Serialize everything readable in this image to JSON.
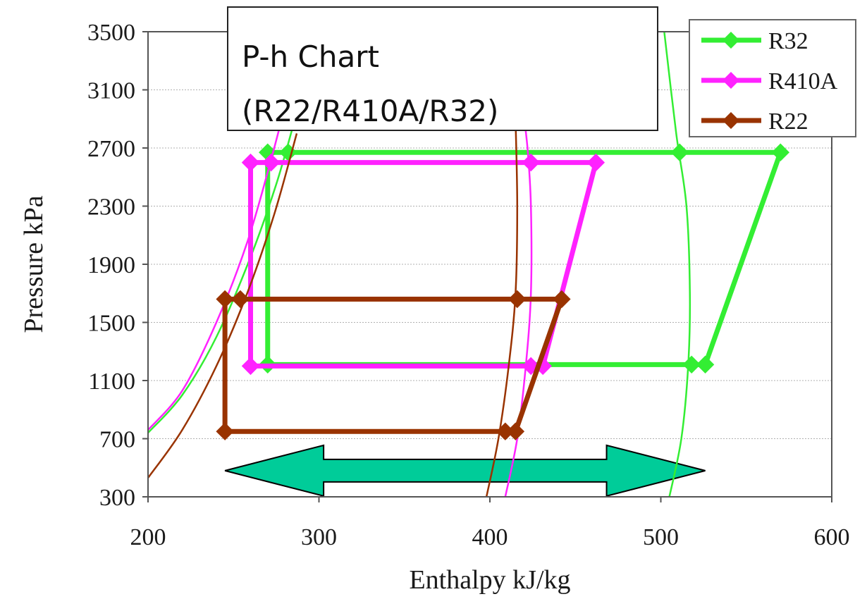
{
  "chart_data": {
    "type": "line",
    "title_lines": [
      "P-h Chart",
      "(R22/R410A/R32)"
    ],
    "xlabel": "Enthalpy  kJ/kg",
    "ylabel": "Pressure  kPa",
    "xlim": [
      200,
      600
    ],
    "ylim": [
      300,
      3500
    ],
    "xticks": [
      200,
      300,
      400,
      500,
      600
    ],
    "yticks": [
      300,
      700,
      1100,
      1500,
      1900,
      2300,
      2700,
      3100,
      3500
    ],
    "grid": "horizontal",
    "legend_position": "top-right",
    "series": [
      {
        "name": "R32",
        "color": "#33ee33",
        "cycle": [
          {
            "x": 270,
            "y": 1210
          },
          {
            "x": 270,
            "y": 2670
          },
          {
            "x": 282,
            "y": 2670
          },
          {
            "x": 511,
            "y": 2670
          },
          {
            "x": 570,
            "y": 2670
          },
          {
            "x": 526,
            "y": 1210
          },
          {
            "x": 518,
            "y": 1210
          },
          {
            "x": 270,
            "y": 1210
          }
        ],
        "saturation_liquid": [
          {
            "x": 200,
            "y": 740
          },
          {
            "x": 220,
            "y": 1000
          },
          {
            "x": 240,
            "y": 1400
          },
          {
            "x": 260,
            "y": 1950
          },
          {
            "x": 275,
            "y": 2450
          },
          {
            "x": 286,
            "y": 2900
          }
        ],
        "saturation_vapor": [
          {
            "x": 505,
            "y": 300
          },
          {
            "x": 512,
            "y": 700
          },
          {
            "x": 516,
            "y": 1200
          },
          {
            "x": 517,
            "y": 1700
          },
          {
            "x": 515,
            "y": 2300
          },
          {
            "x": 509,
            "y": 2800
          },
          {
            "x": 502,
            "y": 3500
          }
        ]
      },
      {
        "name": "R410A",
        "color": "#ff22ff",
        "cycle": [
          {
            "x": 260,
            "y": 1200
          },
          {
            "x": 260,
            "y": 2600
          },
          {
            "x": 272,
            "y": 2600
          },
          {
            "x": 424,
            "y": 2600
          },
          {
            "x": 462,
            "y": 2600
          },
          {
            "x": 431,
            "y": 1200
          },
          {
            "x": 424,
            "y": 1200
          },
          {
            "x": 260,
            "y": 1200
          }
        ],
        "saturation_liquid": [
          {
            "x": 200,
            "y": 760
          },
          {
            "x": 220,
            "y": 1030
          },
          {
            "x": 240,
            "y": 1500
          },
          {
            "x": 258,
            "y": 2050
          },
          {
            "x": 272,
            "y": 2620
          },
          {
            "x": 283,
            "y": 3120
          }
        ],
        "saturation_vapor": [
          {
            "x": 409,
            "y": 300
          },
          {
            "x": 416,
            "y": 700
          },
          {
            "x": 421,
            "y": 1200
          },
          {
            "x": 424,
            "y": 1700
          },
          {
            "x": 424,
            "y": 2300
          },
          {
            "x": 422,
            "y": 2700
          },
          {
            "x": 419,
            "y": 3000
          }
        ]
      },
      {
        "name": "R22",
        "color": "#993300",
        "cycle": [
          {
            "x": 245,
            "y": 750
          },
          {
            "x": 245,
            "y": 1660
          },
          {
            "x": 254,
            "y": 1660
          },
          {
            "x": 416,
            "y": 1660
          },
          {
            "x": 442,
            "y": 1660
          },
          {
            "x": 415,
            "y": 750
          },
          {
            "x": 409,
            "y": 750
          },
          {
            "x": 245,
            "y": 750
          }
        ],
        "saturation_liquid": [
          {
            "x": 200,
            "y": 430
          },
          {
            "x": 220,
            "y": 760
          },
          {
            "x": 240,
            "y": 1200
          },
          {
            "x": 258,
            "y": 1700
          },
          {
            "x": 274,
            "y": 2250
          },
          {
            "x": 287,
            "y": 2800
          }
        ],
        "saturation_vapor": [
          {
            "x": 398,
            "y": 300
          },
          {
            "x": 405,
            "y": 700
          },
          {
            "x": 411,
            "y": 1200
          },
          {
            "x": 415,
            "y": 1700
          },
          {
            "x": 416,
            "y": 2300
          },
          {
            "x": 415,
            "y": 2900
          }
        ]
      }
    ],
    "annotations": [
      {
        "type": "double-arrow",
        "from_x": 245,
        "to_x": 526,
        "y": 480,
        "color": "#00cc99"
      }
    ]
  }
}
